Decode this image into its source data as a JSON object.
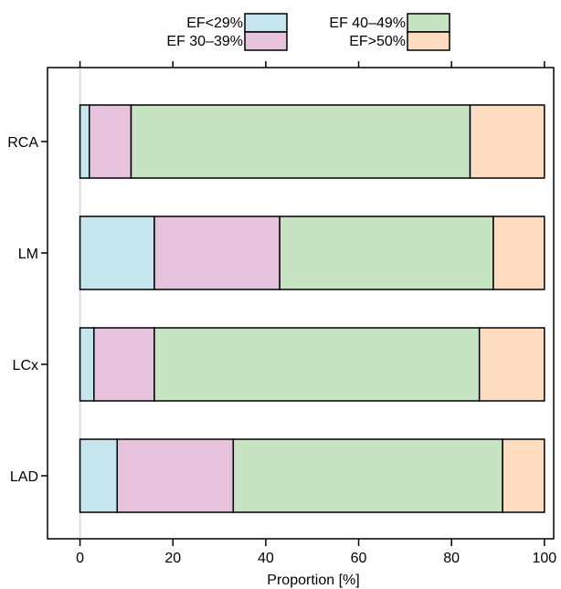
{
  "chart_data": {
    "type": "bar",
    "orientation": "horizontal",
    "stacked": true,
    "categories": [
      "RCA",
      "LM",
      "LCx",
      "LAD"
    ],
    "series": [
      {
        "name": "EF<29%",
        "color": "#c6e6ee",
        "values": [
          2,
          16,
          3,
          8
        ]
      },
      {
        "name": "EF 30–39%",
        "color": "#e7c2dd",
        "values": [
          9,
          27,
          13,
          25
        ]
      },
      {
        "name": "EF 40–49%",
        "color": "#c6e3c2",
        "values": [
          73,
          46,
          70,
          58
        ]
      },
      {
        "name": "EF>50%",
        "color": "#fddcc0",
        "values": [
          16,
          11,
          14,
          9
        ]
      }
    ],
    "xlabel": "Proportion [%]",
    "ylabel": "",
    "xlim": [
      -7,
      102
    ],
    "xticks": [
      0,
      20,
      40,
      60,
      80,
      100
    ],
    "x_tick_labels": [
      "0",
      "20",
      "40",
      "60",
      "80",
      "100"
    ],
    "legend_position": "top",
    "grid": false,
    "reference_line_x": 0
  }
}
